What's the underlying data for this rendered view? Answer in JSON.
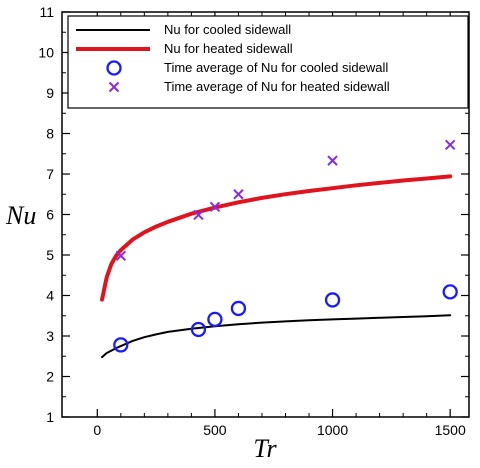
{
  "chart_data": {
    "type": "line",
    "xlabel": "Tr",
    "ylabel": "Nu",
    "xlim": [
      -150,
      1580
    ],
    "ylim": [
      1,
      11
    ],
    "xticks": [
      0,
      500,
      1000,
      1500
    ],
    "yticks": [
      1,
      2,
      3,
      4,
      5,
      6,
      7,
      8,
      9,
      10,
      11
    ],
    "grid": false,
    "legend_position": "top-right",
    "series": [
      {
        "name": "Nu for cooled sidewall",
        "kind": "line",
        "color": "#000000",
        "x": [
          20,
          40,
          60,
          80,
          100,
          150,
          200,
          250,
          300,
          400,
          500,
          600,
          700,
          800,
          900,
          1000,
          1100,
          1200,
          1300,
          1400,
          1500
        ],
        "y": [
          2.48,
          2.58,
          2.64,
          2.7,
          2.75,
          2.88,
          2.97,
          3.04,
          3.1,
          3.18,
          3.24,
          3.29,
          3.33,
          3.36,
          3.39,
          3.41,
          3.43,
          3.45,
          3.47,
          3.49,
          3.51
        ]
      },
      {
        "name": "Nu for heated sidewall",
        "kind": "line",
        "color": "#e0141e",
        "x": [
          20,
          40,
          60,
          80,
          100,
          150,
          200,
          250,
          300,
          400,
          500,
          600,
          700,
          800,
          900,
          1000,
          1100,
          1200,
          1300,
          1400,
          1500
        ],
        "y": [
          3.9,
          4.45,
          4.78,
          4.98,
          5.12,
          5.38,
          5.56,
          5.7,
          5.82,
          6.02,
          6.17,
          6.3,
          6.41,
          6.5,
          6.58,
          6.65,
          6.72,
          6.78,
          6.84,
          6.89,
          6.94
        ]
      },
      {
        "name": "Time average of Nu for cooled sidewall",
        "kind": "scatter",
        "marker": "circle",
        "color": "#1a1aff",
        "x": [
          100,
          430,
          500,
          600,
          1000,
          1500
        ],
        "y": [
          2.78,
          3.16,
          3.41,
          3.68,
          3.89,
          4.09
        ]
      },
      {
        "name": "Time average of Nu for heated sidewall",
        "kind": "scatter",
        "marker": "x",
        "color": "#8a2be2",
        "x": [
          100,
          430,
          500,
          600,
          1000,
          1500
        ],
        "y": [
          4.98,
          5.99,
          6.19,
          6.5,
          7.33,
          7.72
        ]
      }
    ]
  }
}
